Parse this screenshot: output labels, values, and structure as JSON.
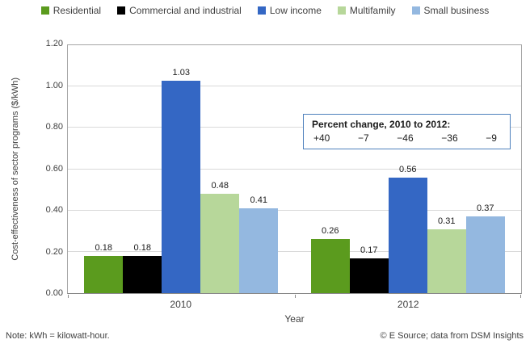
{
  "chart_data": {
    "type": "bar",
    "categories": [
      "2010",
      "2012"
    ],
    "series": [
      {
        "name": "Residential",
        "color": "#5b9b1e",
        "values": [
          0.18,
          0.26
        ]
      },
      {
        "name": "Commercial and industrial",
        "color": "#000000",
        "values": [
          0.18,
          0.17
        ]
      },
      {
        "name": "Low income",
        "color": "#3467c4",
        "values": [
          1.03,
          0.56
        ]
      },
      {
        "name": "Multifamily",
        "color": "#b7d79a",
        "values": [
          0.48,
          0.31
        ]
      },
      {
        "name": "Small business",
        "color": "#94b8e0",
        "values": [
          0.41,
          0.37
        ]
      }
    ],
    "xlabel": "Year",
    "ylabel": "Cost-effectiveness of sector programs ($/kWh)",
    "ylim": [
      0,
      1.2
    ],
    "y_ticks": [
      "0.00",
      "0.20",
      "0.40",
      "0.60",
      "0.80",
      "1.00",
      "1.20"
    ],
    "grid": true,
    "legend_position": "top",
    "data_labels": true
  },
  "annotation_box": {
    "title": "Percent change, 2010 to 2012:",
    "values": [
      "+40",
      "−7",
      "−46",
      "−36",
      "−9"
    ],
    "border_color": "#4f81bd"
  },
  "footer": {
    "note": "Note: kWh = kilowatt-hour.",
    "credit": "© E Source; data from DSM Insights"
  }
}
